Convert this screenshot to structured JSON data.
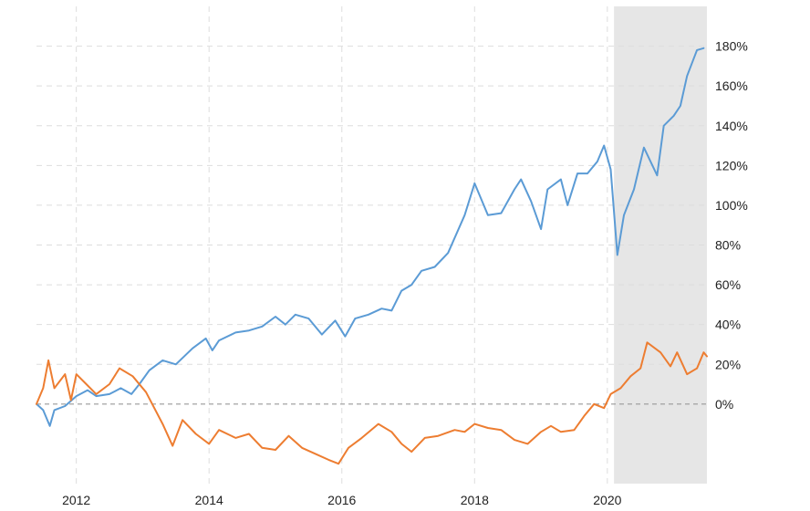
{
  "chart_data": {
    "type": "line",
    "title": "",
    "xlabel": "",
    "ylabel": "",
    "x_ticks": [
      "2012",
      "2014",
      "2016",
      "2018",
      "2020"
    ],
    "y_ticks": [
      "0%",
      "20%",
      "40%",
      "60%",
      "80%",
      "100%",
      "120%",
      "140%",
      "160%",
      "180%"
    ],
    "xlim": [
      2011.4,
      2021.5
    ],
    "ylim": [
      -40,
      200
    ],
    "grid": true,
    "legend": "none",
    "shaded_region": {
      "x_start": 2020.1,
      "x_end": 2021.5,
      "color": "#e6e6e6"
    },
    "colors": {
      "series_1": "#5b9bd5",
      "series_2": "#ed7d31",
      "zero_line": "#999999",
      "grid": "#dddddd"
    },
    "series": [
      {
        "color": "#5b9bd5",
        "points": [
          [
            2011.4,
            0
          ],
          [
            2011.5,
            -3
          ],
          [
            2011.6,
            -11
          ],
          [
            2011.67,
            -3
          ],
          [
            2011.83,
            -1
          ],
          [
            2012.0,
            4
          ],
          [
            2012.17,
            7
          ],
          [
            2012.3,
            4
          ],
          [
            2012.5,
            5
          ],
          [
            2012.67,
            8
          ],
          [
            2012.83,
            5
          ],
          [
            2012.95,
            10
          ],
          [
            2013.1,
            17
          ],
          [
            2013.3,
            22
          ],
          [
            2013.5,
            20
          ],
          [
            2013.75,
            28
          ],
          [
            2013.95,
            33
          ],
          [
            2014.05,
            27
          ],
          [
            2014.15,
            32
          ],
          [
            2014.4,
            36
          ],
          [
            2014.6,
            37
          ],
          [
            2014.8,
            39
          ],
          [
            2015.0,
            44
          ],
          [
            2015.15,
            40
          ],
          [
            2015.3,
            45
          ],
          [
            2015.5,
            43
          ],
          [
            2015.7,
            35
          ],
          [
            2015.9,
            42
          ],
          [
            2016.05,
            34
          ],
          [
            2016.2,
            43
          ],
          [
            2016.4,
            45
          ],
          [
            2016.6,
            48
          ],
          [
            2016.75,
            47
          ],
          [
            2016.9,
            57
          ],
          [
            2017.05,
            60
          ],
          [
            2017.2,
            67
          ],
          [
            2017.4,
            69
          ],
          [
            2017.6,
            76
          ],
          [
            2017.85,
            95
          ],
          [
            2018.0,
            111
          ],
          [
            2018.2,
            95
          ],
          [
            2018.4,
            96
          ],
          [
            2018.6,
            108
          ],
          [
            2018.7,
            113
          ],
          [
            2018.85,
            102
          ],
          [
            2019.0,
            88
          ],
          [
            2019.1,
            108
          ],
          [
            2019.3,
            113
          ],
          [
            2019.4,
            100
          ],
          [
            2019.55,
            116
          ],
          [
            2019.7,
            116
          ],
          [
            2019.85,
            122
          ],
          [
            2019.95,
            130
          ],
          [
            2020.05,
            118
          ],
          [
            2020.15,
            75
          ],
          [
            2020.25,
            95
          ],
          [
            2020.4,
            108
          ],
          [
            2020.55,
            129
          ],
          [
            2020.75,
            115
          ],
          [
            2020.85,
            140
          ],
          [
            2021.0,
            145
          ],
          [
            2021.1,
            150
          ],
          [
            2021.2,
            165
          ],
          [
            2021.35,
            178
          ],
          [
            2021.45,
            179
          ]
        ]
      },
      {
        "color": "#ed7d31",
        "points": [
          [
            2011.4,
            0
          ],
          [
            2011.5,
            8
          ],
          [
            2011.58,
            22
          ],
          [
            2011.67,
            8
          ],
          [
            2011.83,
            15
          ],
          [
            2011.92,
            2
          ],
          [
            2012.0,
            15
          ],
          [
            2012.15,
            10
          ],
          [
            2012.3,
            5
          ],
          [
            2012.5,
            10
          ],
          [
            2012.65,
            18
          ],
          [
            2012.85,
            14
          ],
          [
            2013.05,
            6
          ],
          [
            2013.3,
            -10
          ],
          [
            2013.45,
            -21
          ],
          [
            2013.6,
            -8
          ],
          [
            2013.8,
            -15
          ],
          [
            2014.0,
            -20
          ],
          [
            2014.15,
            -13
          ],
          [
            2014.4,
            -17
          ],
          [
            2014.6,
            -15
          ],
          [
            2014.8,
            -22
          ],
          [
            2015.0,
            -23
          ],
          [
            2015.2,
            -16
          ],
          [
            2015.4,
            -22
          ],
          [
            2015.6,
            -25
          ],
          [
            2015.8,
            -28
          ],
          [
            2015.95,
            -30
          ],
          [
            2016.1,
            -22
          ],
          [
            2016.3,
            -17
          ],
          [
            2016.55,
            -10
          ],
          [
            2016.75,
            -14
          ],
          [
            2016.9,
            -20
          ],
          [
            2017.05,
            -24
          ],
          [
            2017.25,
            -17
          ],
          [
            2017.45,
            -16
          ],
          [
            2017.7,
            -13
          ],
          [
            2017.85,
            -14
          ],
          [
            2018.0,
            -10
          ],
          [
            2018.2,
            -12
          ],
          [
            2018.4,
            -13
          ],
          [
            2018.6,
            -18
          ],
          [
            2018.8,
            -20
          ],
          [
            2019.0,
            -14
          ],
          [
            2019.15,
            -11
          ],
          [
            2019.3,
            -14
          ],
          [
            2019.5,
            -13
          ],
          [
            2019.65,
            -6
          ],
          [
            2019.8,
            0
          ],
          [
            2019.95,
            -2
          ],
          [
            2020.05,
            5
          ],
          [
            2020.2,
            8
          ],
          [
            2020.35,
            14
          ],
          [
            2020.5,
            18
          ],
          [
            2020.6,
            31
          ],
          [
            2020.8,
            26
          ],
          [
            2020.95,
            19
          ],
          [
            2021.05,
            26
          ],
          [
            2021.2,
            15
          ],
          [
            2021.35,
            18
          ],
          [
            2021.45,
            26
          ],
          [
            2021.5,
            24
          ]
        ]
      }
    ]
  }
}
